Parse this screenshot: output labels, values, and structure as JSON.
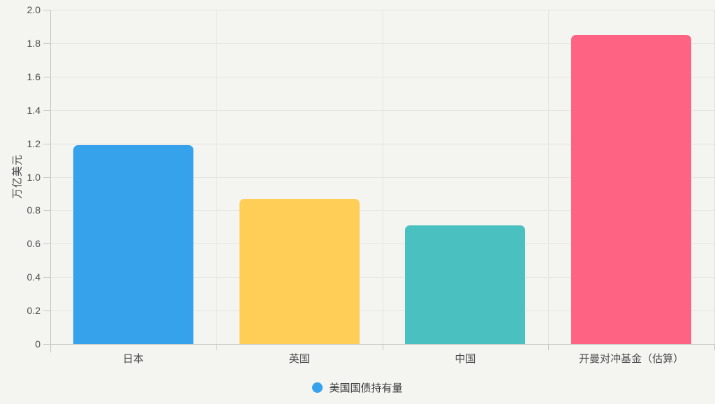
{
  "chart_data": {
    "type": "bar",
    "title": "",
    "xlabel": "",
    "ylabel": "万亿美元",
    "categories": [
      "日本",
      "英国",
      "中国",
      "开曼对冲基金（估算）"
    ],
    "values": [
      1.19,
      0.87,
      0.71,
      1.85
    ],
    "bar_colors": [
      "#36A2EB",
      "#FFCE56",
      "#4BC0C0",
      "#FF6384"
    ],
    "ylim": [
      0,
      2.0
    ],
    "ytick_step": 0.2,
    "ytick_labels": [
      "0",
      "0.2",
      "0.4",
      "0.6",
      "0.8",
      "1.0",
      "1.2",
      "1.4",
      "1.6",
      "1.8",
      "2.0"
    ],
    "grid": true,
    "legend": {
      "position": "bottom",
      "entries": [
        {
          "label": "美国国债持有量",
          "color": "#36A2EB"
        }
      ]
    }
  },
  "colors": {
    "background": "#f4f4f1",
    "gridline": "#e4e4e1",
    "axis_line": "#c8c8c5",
    "tick_text": "#4d4d4d",
    "label_text": "#4d4d4d",
    "legend_text": "#353535"
  }
}
